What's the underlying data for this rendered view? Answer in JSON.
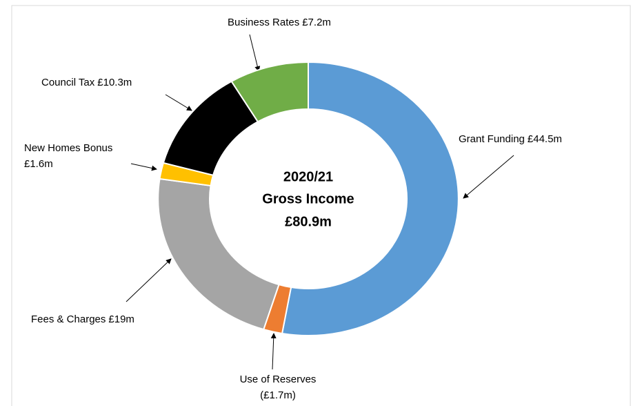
{
  "chart_data": {
    "type": "donut",
    "center_label": [
      "2020/21",
      "Gross Income",
      "£80.9m"
    ],
    "categories": [
      "Grant Funding",
      "Use of Reserves",
      "Fees & Charges",
      "New Homes Bonus",
      "Council Tax",
      "Business Rates"
    ],
    "values": [
      44.5,
      1.7,
      19,
      1.6,
      10.3,
      7.2
    ],
    "value_labels": [
      "£44.5m",
      "(£1.7m)",
      "£19m",
      "£1.6m",
      "£10.3m",
      "£7.2m"
    ],
    "colors": [
      "#5b9bd5",
      "#ed7d31",
      "#a5a5a5",
      "#ffc000",
      "#000000",
      "#70ad47"
    ]
  }
}
